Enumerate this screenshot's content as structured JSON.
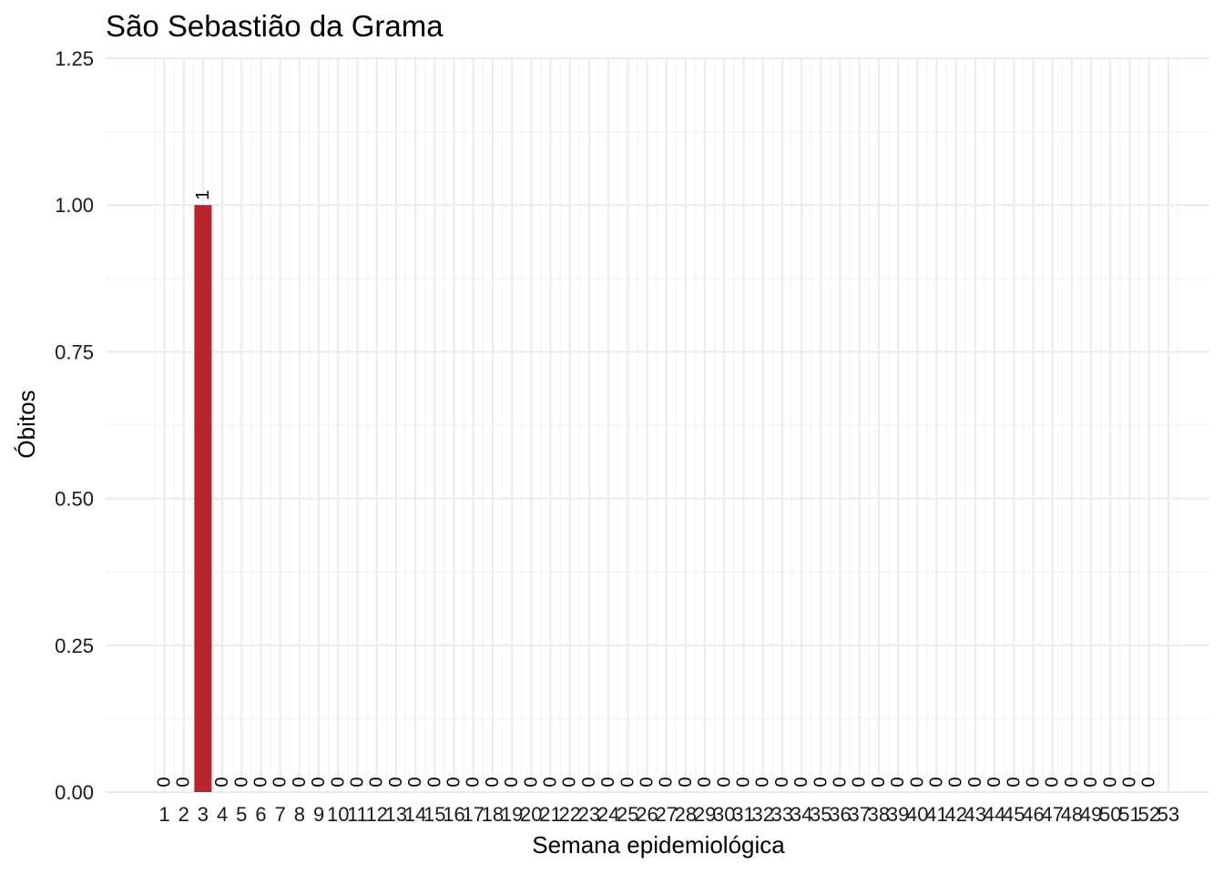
{
  "chart_data": {
    "type": "bar",
    "title": "São Sebastião da Grama",
    "xlabel": "Semana epidemiológica",
    "ylabel": "Óbitos",
    "categories": [
      "1",
      "2",
      "3",
      "4",
      "5",
      "6",
      "7",
      "8",
      "9",
      "10",
      "11",
      "12",
      "13",
      "14",
      "15",
      "16",
      "17",
      "18",
      "19",
      "20",
      "21",
      "22",
      "23",
      "24",
      "25",
      "26",
      "27",
      "28",
      "29",
      "30",
      "31",
      "32",
      "33",
      "34",
      "35",
      "36",
      "37",
      "38",
      "39",
      "40",
      "41",
      "42",
      "43",
      "44",
      "45",
      "46",
      "47",
      "48",
      "49",
      "50",
      "51",
      "52",
      "53"
    ],
    "values": [
      0,
      0,
      1,
      0,
      0,
      0,
      0,
      0,
      0,
      0,
      0,
      0,
      0,
      0,
      0,
      0,
      0,
      0,
      0,
      0,
      0,
      0,
      0,
      0,
      0,
      0,
      0,
      0,
      0,
      0,
      0,
      0,
      0,
      0,
      0,
      0,
      0,
      0,
      0,
      0,
      0,
      0,
      0,
      0,
      0,
      0,
      0,
      0,
      0,
      0,
      0,
      0,
      null
    ],
    "ylim": [
      0,
      1.25
    ],
    "yticks": [
      "0.00",
      "0.25",
      "0.50",
      "0.75",
      "1.00",
      "1.25"
    ],
    "grid": true,
    "bar_color": "#b8252e"
  }
}
